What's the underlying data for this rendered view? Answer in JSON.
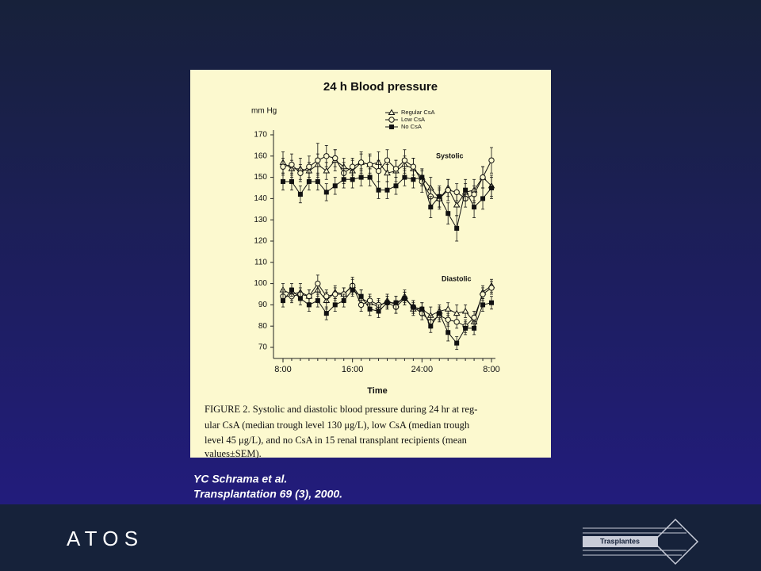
{
  "chart_data": {
    "type": "line",
    "title": "24 h Blood pressure",
    "y_label": "mm Hg",
    "x_label": "Time",
    "annotations": [
      "Systolic",
      "Diastolic"
    ],
    "categories": [
      "8:00",
      null,
      null,
      null,
      null,
      null,
      null,
      null,
      "16:00",
      null,
      null,
      null,
      null,
      null,
      null,
      null,
      "24:00",
      null,
      null,
      null,
      null,
      null,
      null,
      null,
      "8:00"
    ],
    "ylim": [
      70,
      170
    ],
    "yticks": [
      70,
      80,
      90,
      100,
      110,
      120,
      130,
      140,
      150,
      160,
      170
    ],
    "series": [
      {
        "name": "Regular CsA",
        "color": "#111111",
        "marker": "triangle",
        "values": [
          157,
          154,
          154,
          153,
          156,
          153,
          158,
          155,
          153,
          157,
          156,
          157,
          152,
          153,
          156,
          154,
          150,
          145,
          140,
          145,
          137,
          143,
          144,
          150,
          146
        ],
        "errors": [
          5,
          4,
          5,
          4,
          5,
          4,
          5,
          4,
          5,
          4,
          5,
          5,
          4,
          5,
          4,
          5,
          4,
          5,
          5,
          4,
          5,
          4,
          5,
          5,
          5
        ],
        "diastolic": [
          97,
          95,
          96,
          94,
          97,
          92,
          96,
          95,
          99,
          93,
          91,
          89,
          92,
          90,
          94,
          88,
          88,
          85,
          87,
          88,
          86,
          87,
          82,
          96,
          99
        ],
        "diastolic_errors": [
          3,
          3,
          4,
          3,
          3,
          4,
          3,
          3,
          3,
          4,
          3,
          3,
          3,
          4,
          3,
          3,
          3,
          4,
          3,
          3,
          4,
          3,
          3,
          3,
          3
        ]
      },
      {
        "name": "Low CsA",
        "color": "#111111",
        "marker": "circle",
        "values": [
          155,
          156,
          152,
          155,
          158,
          160,
          159,
          152,
          155,
          157,
          156,
          153,
          158,
          154,
          158,
          155,
          148,
          141,
          140,
          144,
          143,
          140,
          142,
          150,
          158
        ],
        "errors": [
          4,
          5,
          4,
          5,
          8,
          5,
          4,
          5,
          4,
          5,
          4,
          5,
          5,
          4,
          5,
          4,
          5,
          4,
          4,
          5,
          4,
          4,
          4,
          5,
          6
        ],
        "diastolic": [
          94,
          94,
          95,
          94,
          100,
          94,
          95,
          95,
          99,
          90,
          92,
          90,
          91,
          89,
          93,
          89,
          86,
          82,
          85,
          83,
          82,
          80,
          84,
          95,
          98
        ],
        "diastolic_errors": [
          3,
          3,
          3,
          3,
          4,
          3,
          3,
          3,
          4,
          3,
          3,
          3,
          3,
          3,
          3,
          3,
          3,
          3,
          3,
          3,
          3,
          3,
          3,
          3,
          3
        ]
      },
      {
        "name": "No CsA",
        "color": "#111111",
        "marker": "square",
        "values": [
          148,
          148,
          142,
          148,
          148,
          143,
          146,
          149,
          149,
          150,
          150,
          144,
          144,
          146,
          150,
          149,
          150,
          136,
          141,
          133,
          126,
          144,
          136,
          140,
          145
        ],
        "errors": [
          4,
          4,
          4,
          4,
          4,
          4,
          4,
          4,
          4,
          4,
          4,
          4,
          4,
          4,
          4,
          4,
          4,
          5,
          5,
          5,
          6,
          5,
          5,
          5,
          5
        ],
        "diastolic": [
          92,
          97,
          93,
          90,
          92,
          86,
          90,
          92,
          97,
          94,
          88,
          87,
          91,
          91,
          93,
          89,
          88,
          80,
          86,
          77,
          72,
          79,
          79,
          90,
          91
        ],
        "diastolic_errors": [
          3,
          3,
          3,
          3,
          3,
          3,
          3,
          3,
          3,
          3,
          3,
          3,
          3,
          3,
          3,
          3,
          3,
          3,
          3,
          4,
          3,
          3,
          3,
          3,
          3
        ]
      }
    ],
    "caption": [
      "FIGURE 2. Systolic and diastolic blood pressure during 24 hr at reg-",
      "ular CsA (median trough level 130 μg/L), low CsA (median trough",
      "level 45 μg/L), and no CsA in 15 renal transplant recipients (mean",
      "values±SEM)."
    ]
  },
  "slide": {
    "citation": [
      "YC Schrama et al.",
      "Transplantation 69 (3), 2000."
    ],
    "brand": "A T O S",
    "logo": "Trasplantes"
  }
}
